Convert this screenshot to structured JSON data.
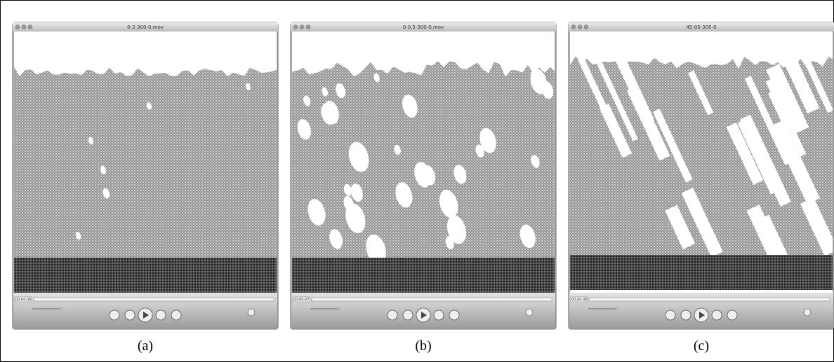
{
  "panels": [
    {
      "title": "0-2-300-0.mov",
      "timecode": "00:00:00",
      "caption": "(a)"
    },
    {
      "title": "0-0.5-300-0.mov",
      "timecode": "00:00:07",
      "caption": "(b)"
    },
    {
      "title": "45-05-300-0",
      "timecode": "00:00:00",
      "caption": "(c)"
    }
  ]
}
